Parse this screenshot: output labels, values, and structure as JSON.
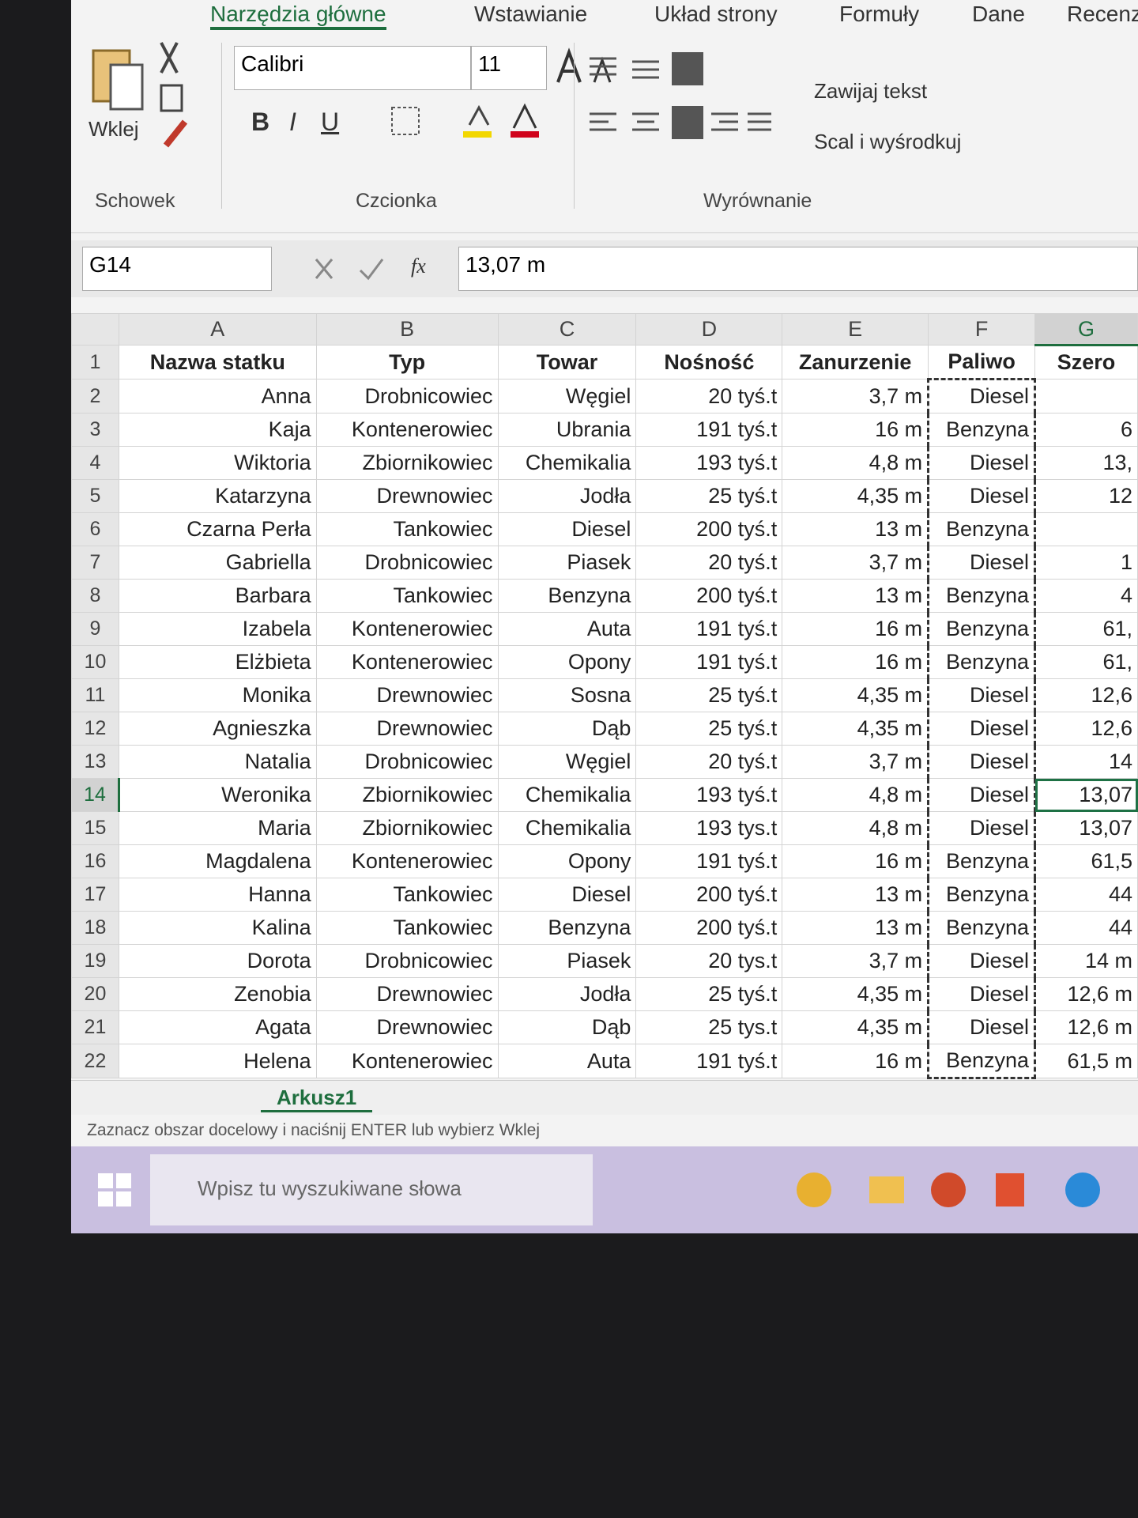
{
  "ribbon": {
    "tabs": [
      "Narzędzia główne",
      "Wstawianie",
      "Układ strony",
      "Formuły",
      "Dane",
      "Recenzj"
    ],
    "clipboard": {
      "paste": "Wklej",
      "label": "Schowek"
    },
    "font": {
      "name": "Calibri",
      "size": "11",
      "buttons": [
        "B",
        "I",
        "U"
      ],
      "label": "Czcionka"
    },
    "alignment": {
      "wrap": "Zawijaj tekst",
      "merge": "Scal i wyśrodkuj",
      "label": "Wyrównanie"
    }
  },
  "formula_bar": {
    "name_box": "G14",
    "function": "fx",
    "formula": "13,07 m"
  },
  "sheet": {
    "columns": [
      "A",
      "B",
      "C",
      "D",
      "E",
      "F",
      "G"
    ],
    "row_numbers": [
      1,
      2,
      3,
      4,
      5,
      6,
      7,
      8,
      9,
      10,
      11,
      12,
      13,
      14,
      15,
      16,
      17,
      18,
      19,
      20,
      21,
      22
    ],
    "header": [
      "Nazwa statku",
      "Typ",
      "Towar",
      "Nośność",
      "Zanurzenie",
      "Paliwo",
      "Szero"
    ],
    "rows": [
      [
        "Anna",
        "Drobnicowiec",
        "Węgiel",
        "20 tyś.t",
        "3,7 m",
        "Diesel",
        null
      ],
      [
        "Kaja",
        "Kontenerowiec",
        "Ubrania",
        "191 tyś.t",
        "16 m",
        "Benzyna",
        "6"
      ],
      [
        "Wiktoria",
        "Zbiornikowiec",
        "Chemikalia",
        "193 tyś.t",
        "4,8 m",
        "Diesel",
        "13,"
      ],
      [
        "Katarzyna",
        "Drewnowiec",
        "Jodła",
        "25 tyś.t",
        "4,35 m",
        "Diesel",
        "12"
      ],
      [
        "Czarna Perła",
        "Tankowiec",
        "Diesel",
        "200 tyś.t",
        "13 m",
        "Benzyna",
        null
      ],
      [
        "Gabriella",
        "Drobnicowiec",
        "Piasek",
        "20 tyś.t",
        "3,7 m",
        "Diesel",
        "1"
      ],
      [
        "Barbara",
        "Tankowiec",
        "Benzyna",
        "200 tyś.t",
        "13 m",
        "Benzyna",
        "4"
      ],
      [
        "Izabela",
        "Kontenerowiec",
        "Auta",
        "191 tyś.t",
        "16 m",
        "Benzyna",
        "61,"
      ],
      [
        "Elżbieta",
        "Kontenerowiec",
        "Opony",
        "191 tyś.t",
        "16 m",
        "Benzyna",
        "61,"
      ],
      [
        "Monika",
        "Drewnowiec",
        "Sosna",
        "25 tyś.t",
        "4,35 m",
        "Diesel",
        "12,6"
      ],
      [
        "Agnieszka",
        "Drewnowiec",
        "Dąb",
        "25 tyś.t",
        "4,35 m",
        "Diesel",
        "12,6"
      ],
      [
        "Natalia",
        "Drobnicowiec",
        "Węgiel",
        "20 tyś.t",
        "3,7 m",
        "Diesel",
        "14"
      ],
      [
        "Weronika",
        "Zbiornikowiec",
        "Chemikalia",
        "193 tyś.t",
        "4,8 m",
        "Diesel",
        "13,07"
      ],
      [
        "Maria",
        "Zbiornikowiec",
        "Chemikalia",
        "193 tys.t",
        "4,8 m",
        "Diesel",
        "13,07"
      ],
      [
        "Magdalena",
        "Kontenerowiec",
        "Opony",
        "191 tyś.t",
        "16 m",
        "Benzyna",
        "61,5"
      ],
      [
        "Hanna",
        "Tankowiec",
        "Diesel",
        "200 tyś.t",
        "13 m",
        "Benzyna",
        "44"
      ],
      [
        "Kalina",
        "Tankowiec",
        "Benzyna",
        "200 tyś.t",
        "13 m",
        "Benzyna",
        "44"
      ],
      [
        "Dorota",
        "Drobnicowiec",
        "Piasek",
        "20 tys.t",
        "3,7 m",
        "Diesel",
        "14 m"
      ],
      [
        "Zenobia",
        "Drewnowiec",
        "Jodła",
        "25 tyś.t",
        "4,35 m",
        "Diesel",
        "12,6 m"
      ],
      [
        "Agata",
        "Drewnowiec",
        "Dąb",
        "25 tys.t",
        "4,35 m",
        "Diesel",
        "12,6 m"
      ],
      [
        "Helena",
        "Kontenerowiec",
        "Auta",
        "191 tyś.t",
        "16 m",
        "Benzyna",
        "61,5 m"
      ]
    ],
    "sheet_tab": "Arkusz1"
  },
  "status": "Zaznacz obszar docelowy i naciśnij ENTER lub wybierz Wklej",
  "taskbar": {
    "search": "Wpisz tu wyszukiwane słowa"
  }
}
